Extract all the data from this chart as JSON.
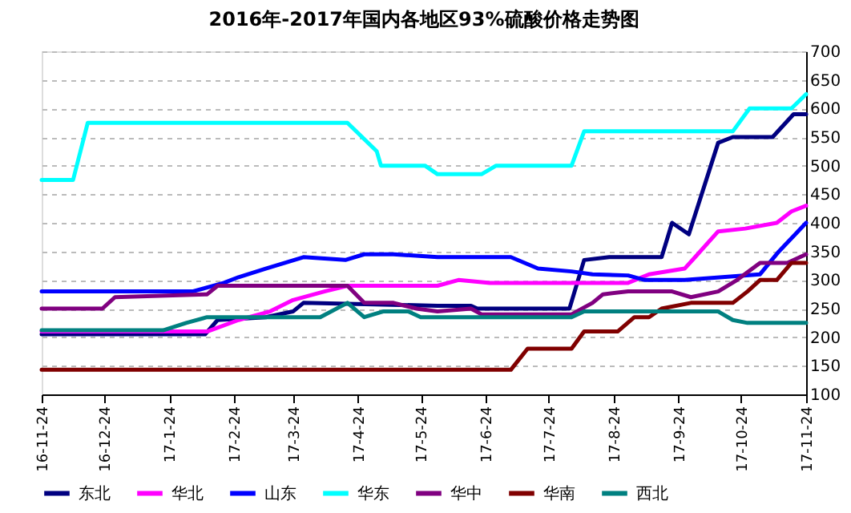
{
  "chart_data": {
    "type": "line",
    "title": "2016年-2017年国内各地区93%硫酸价格走势图",
    "xlim": [
      "2016-11-24",
      "2017-11-24"
    ],
    "xticks": [
      {
        "value": "2016-11-24",
        "label": "16-11-24"
      },
      {
        "value": "2016-12-24",
        "label": "16-12-24"
      },
      {
        "value": "2017-01-24",
        "label": "17-1-24"
      },
      {
        "value": "2017-02-24",
        "label": "17-2-24"
      },
      {
        "value": "2017-03-24",
        "label": "17-3-24"
      },
      {
        "value": "2017-04-24",
        "label": "17-4-24"
      },
      {
        "value": "2017-05-24",
        "label": "17-5-24"
      },
      {
        "value": "2017-06-24",
        "label": "17-6-24"
      },
      {
        "value": "2017-07-24",
        "label": "17-7-24"
      },
      {
        "value": "2017-08-24",
        "label": "17-8-24"
      },
      {
        "value": "2017-09-24",
        "label": "17-9-24"
      },
      {
        "value": "2017-10-24",
        "label": "17-10-24"
      },
      {
        "value": "2017-11-24",
        "label": "17-11-24"
      }
    ],
    "ylim": [
      100,
      700
    ],
    "yticks": [
      100,
      150,
      200,
      250,
      300,
      350,
      400,
      450,
      500,
      550,
      600,
      650,
      700
    ],
    "grid": "y",
    "legend": "bottom",
    "series": [
      {
        "name": "东北",
        "color": "#000080",
        "x": [
          "2016-11-24",
          "2017-02-10",
          "2017-02-16",
          "2017-03-11",
          "2017-03-24",
          "2017-03-29",
          "2017-06-01",
          "2017-06-17",
          "2017-06-20",
          "2017-08-03",
          "2017-08-10",
          "2017-08-22",
          "2017-09-16",
          "2017-09-21",
          "2017-09-29",
          "2017-10-13",
          "2017-10-20",
          "2017-11-08",
          "2017-11-18",
          "2017-11-24"
        ],
        "values": [
          205,
          205,
          230,
          235,
          245,
          260,
          255,
          255,
          250,
          250,
          335,
          340,
          340,
          400,
          380,
          540,
          550,
          550,
          590,
          590
        ]
      },
      {
        "name": "华北",
        "color": "#ff00ff",
        "x": [
          "2016-11-24",
          "2017-02-11",
          "2017-02-26",
          "2017-03-13",
          "2017-03-24",
          "2017-04-08",
          "2017-04-19",
          "2017-06-01",
          "2017-06-11",
          "2017-06-26",
          "2017-08-31",
          "2017-09-10",
          "2017-09-27",
          "2017-10-02",
          "2017-10-13",
          "2017-10-26",
          "2017-11-10",
          "2017-11-17",
          "2017-11-24"
        ],
        "values": [
          210,
          210,
          230,
          245,
          265,
          280,
          290,
          290,
          300,
          295,
          295,
          310,
          320,
          340,
          385,
          390,
          400,
          420,
          430
        ]
      },
      {
        "name": "山东",
        "color": "#0000ff",
        "x": [
          "2016-11-24",
          "2017-02-04",
          "2017-02-19",
          "2017-02-26",
          "2017-03-11",
          "2017-03-29",
          "2017-04-18",
          "2017-04-27",
          "2017-05-11",
          "2017-06-01",
          "2017-07-06",
          "2017-07-19",
          "2017-08-04",
          "2017-08-14",
          "2017-08-31",
          "2017-09-08",
          "2017-09-27",
          "2017-10-15",
          "2017-11-02",
          "2017-11-11",
          "2017-11-24"
        ],
        "values": [
          280,
          280,
          295,
          305,
          320,
          340,
          335,
          345,
          345,
          340,
          340,
          320,
          315,
          310,
          308,
          300,
          300,
          305,
          310,
          350,
          400
        ]
      },
      {
        "name": "华东",
        "color": "#00ffff",
        "x": [
          "2016-11-24",
          "2016-12-09",
          "2016-12-16",
          "2017-04-19",
          "2017-05-03",
          "2017-05-05",
          "2017-05-26",
          "2017-06-01",
          "2017-06-22",
          "2017-06-29",
          "2017-08-04",
          "2017-08-10",
          "2017-10-20",
          "2017-10-28",
          "2017-11-17",
          "2017-11-24"
        ],
        "values": [
          475,
          475,
          575,
          575,
          525,
          500,
          500,
          485,
          485,
          500,
          500,
          560,
          560,
          600,
          600,
          625
        ]
      },
      {
        "name": "华中",
        "color": "#800080",
        "x": [
          "2016-11-24",
          "2016-12-23",
          "2016-12-29",
          "2017-02-11",
          "2017-02-16",
          "2017-04-19",
          "2017-04-27",
          "2017-05-11",
          "2017-05-22",
          "2017-06-01",
          "2017-06-17",
          "2017-06-22",
          "2017-08-04",
          "2017-08-14",
          "2017-08-19",
          "2017-08-31",
          "2017-09-21",
          "2017-09-30",
          "2017-10-13",
          "2017-10-22",
          "2017-11-02",
          "2017-11-15",
          "2017-11-24"
        ],
        "values": [
          250,
          250,
          270,
          275,
          290,
          290,
          260,
          260,
          250,
          245,
          250,
          240,
          240,
          260,
          275,
          280,
          280,
          270,
          280,
          300,
          330,
          330,
          345
        ]
      },
      {
        "name": "华南",
        "color": "#800000",
        "x": [
          "2016-11-24",
          "2017-07-06",
          "2017-07-14",
          "2017-08-04",
          "2017-08-10",
          "2017-08-26",
          "2017-09-03",
          "2017-09-10",
          "2017-09-16",
          "2017-09-30",
          "2017-10-20",
          "2017-10-27",
          "2017-11-02",
          "2017-11-10",
          "2017-11-17",
          "2017-11-24"
        ],
        "values": [
          143,
          143,
          180,
          180,
          210,
          210,
          235,
          235,
          250,
          260,
          260,
          280,
          300,
          300,
          330,
          330
        ]
      },
      {
        "name": "西北",
        "color": "#008080",
        "x": [
          "2016-11-24",
          "2017-01-21",
          "2017-02-01",
          "2017-02-11",
          "2017-04-06",
          "2017-04-19",
          "2017-04-27",
          "2017-05-06",
          "2017-05-18",
          "2017-05-24",
          "2017-08-04",
          "2017-08-10",
          "2017-10-13",
          "2017-10-20",
          "2017-10-27",
          "2017-11-24"
        ],
        "values": [
          212,
          212,
          225,
          235,
          235,
          260,
          235,
          245,
          245,
          235,
          235,
          245,
          245,
          230,
          225,
          225
        ]
      }
    ]
  }
}
